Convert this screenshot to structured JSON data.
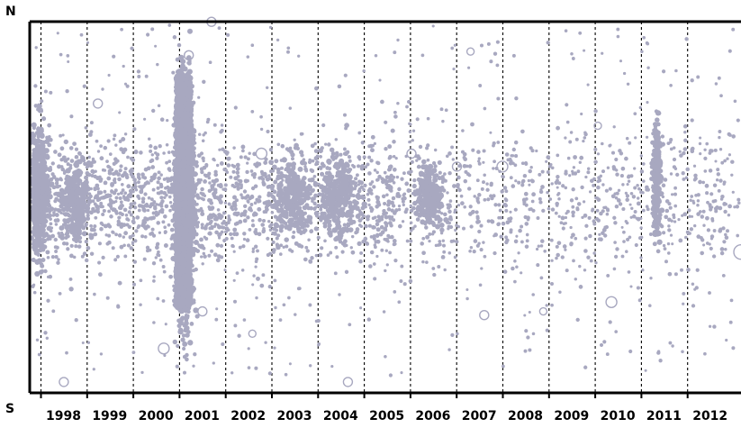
{
  "chart_data": {
    "type": "scatter",
    "title": "",
    "xlabel": "",
    "ylabel": "",
    "y_top_label": "N",
    "y_bottom_label": "S",
    "x_ticks": [
      "1998",
      "1999",
      "2000",
      "2001",
      "2002",
      "2003",
      "2004",
      "2005",
      "2006",
      "2007",
      "2008",
      "2009",
      "2010",
      "2011",
      "2012"
    ],
    "x_range": [
      1997.2,
      2012.85
    ],
    "grid": "vertical dashed at year boundaries",
    "legend": "none",
    "colors": {
      "points": "#a8a8c0",
      "frame": "#000000",
      "grid": "#000000"
    },
    "series": [
      {
        "values_note": "",
        "clusters": [
          {
            "year": 2000.6,
            "lat": 0.0,
            "spread_x": 0.18,
            "spread_y": 0.55,
            "density": "very high"
          },
          {
            "year": 1997.4,
            "lat": 0.05,
            "spread_x": 0.2,
            "spread_y": 0.35,
            "density": "high"
          },
          {
            "year": 1998.2,
            "lat": 0.0,
            "spread_x": 0.3,
            "spread_y": 0.2,
            "density": "medium"
          },
          {
            "year": 2003.0,
            "lat": 0.02,
            "spread_x": 0.4,
            "spread_y": 0.2,
            "density": "medium"
          },
          {
            "year": 2004.0,
            "lat": 0.02,
            "spread_x": 0.4,
            "spread_y": 0.2,
            "density": "medium"
          },
          {
            "year": 2006.0,
            "lat": 0.02,
            "spread_x": 0.3,
            "spread_y": 0.15,
            "density": "medium"
          },
          {
            "year": 2011.0,
            "lat": 0.12,
            "spread_x": 0.08,
            "spread_y": 0.3,
            "density": "medium"
          }
        ]
      }
    ]
  }
}
